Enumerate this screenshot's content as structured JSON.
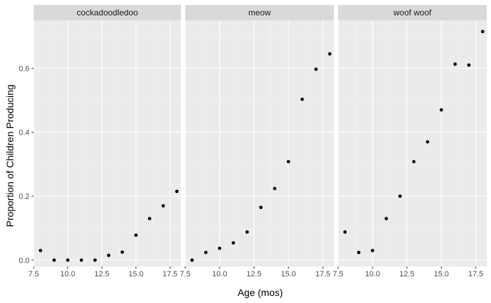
{
  "chart_data": {
    "type": "scatter",
    "xlabel": "Age (mos)",
    "ylabel": "Proportion of Children Producing",
    "xlim": [
      7.5,
      18.3
    ],
    "ylim": [
      -0.02,
      0.75
    ],
    "x_ticks": [
      7.5,
      10.0,
      12.5,
      15.0,
      17.5
    ],
    "x_tick_labels": [
      "7.5",
      "10.0",
      "12.5",
      "15.0",
      "17.5"
    ],
    "y_ticks": [
      0.0,
      0.2,
      0.4,
      0.6
    ],
    "y_tick_labels": [
      "0.0",
      "0.2",
      "0.4",
      "0.6"
    ],
    "grid": true,
    "panel_background": "#ebebeb",
    "strip_background": "#d9d9d9",
    "point_color": "#000000",
    "facets": [
      {
        "label": "cockadoodledoo",
        "x": [
          8,
          9,
          10,
          11,
          12,
          13,
          14,
          15,
          16,
          17,
          18
        ],
        "y": [
          0.03,
          0.0,
          0.0,
          0.0,
          0.0,
          0.015,
          0.025,
          0.078,
          0.13,
          0.17,
          0.215
        ]
      },
      {
        "label": "meow",
        "x": [
          8,
          9,
          10,
          11,
          12,
          13,
          14,
          15,
          16,
          17,
          18
        ],
        "y": [
          0.0,
          0.024,
          0.037,
          0.054,
          0.088,
          0.165,
          0.224,
          0.308,
          0.503,
          0.597,
          0.645
        ]
      },
      {
        "label": "woof woof",
        "x": [
          8,
          9,
          10,
          11,
          12,
          13,
          14,
          15,
          16,
          17,
          18
        ],
        "y": [
          0.088,
          0.024,
          0.03,
          0.13,
          0.2,
          0.308,
          0.37,
          0.47,
          0.613,
          0.61,
          0.715
        ]
      }
    ]
  }
}
